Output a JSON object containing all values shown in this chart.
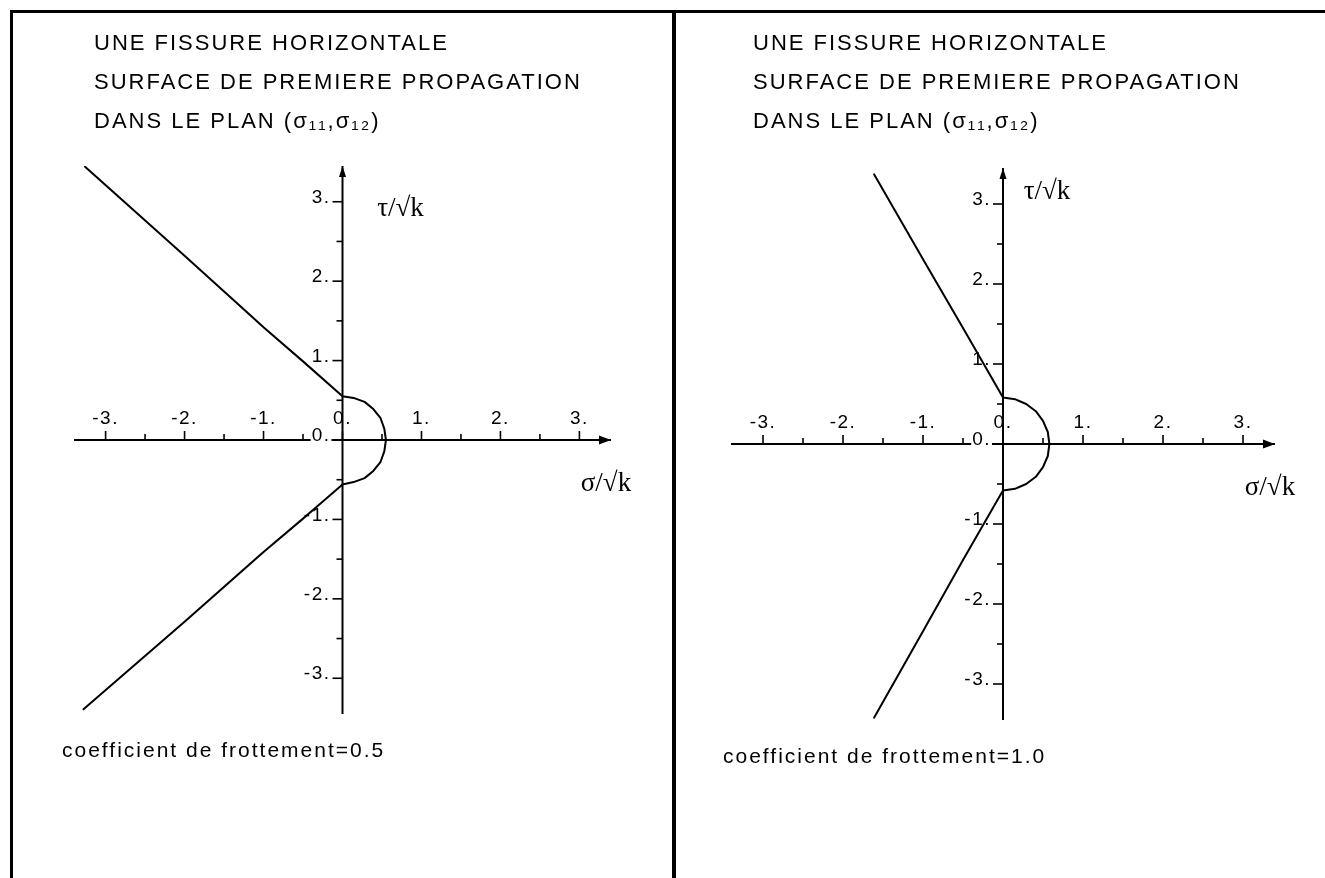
{
  "chart_data": [
    {
      "type": "line",
      "title": "UNE FISSURE HORIZONTALE\nSURFACE DE PREMIERE PROPAGATION\nDANS LE PLAN (σ₁₁,σ₁₂)",
      "xlabel": "σ/√k",
      "ylabel": "τ/√k",
      "annotations": [
        "coefficient de frottement=0.5"
      ],
      "x": [
        -3.26,
        -2,
        -1,
        -0.5,
        0,
        0.14,
        0.28,
        0.39,
        0.48,
        0.53,
        0.55,
        0.53,
        0.48,
        0.39,
        0.28,
        0.14,
        0,
        -0.5,
        -1,
        -2,
        -3.28
      ],
      "series": [
        {
          "color": "#000000",
          "values": [
            3.44,
            2.32,
            1.42,
            0.99,
            0.55,
            0.53,
            0.48,
            0.39,
            0.28,
            0.14,
            0,
            -0.14,
            -0.28,
            -0.39,
            -0.48,
            -0.53,
            -0.56,
            -0.99,
            -1.41,
            -2.29,
            -3.39
          ]
        }
      ],
      "xlim": [
        -3.4,
        3.4
      ],
      "ylim": [
        -3.45,
        3.45
      ],
      "xticks": [
        {
          "value": -3,
          "label": "-3."
        },
        {
          "value": -2.5,
          "label": null
        },
        {
          "value": -2,
          "label": "-2."
        },
        {
          "value": -1.5,
          "label": null
        },
        {
          "value": -1,
          "label": "-1."
        },
        {
          "value": -0.5,
          "label": null
        },
        {
          "value": 0,
          "label": "0."
        },
        {
          "value": 0.5,
          "label": null
        },
        {
          "value": 1,
          "label": "1."
        },
        {
          "value": 1.5,
          "label": null
        },
        {
          "value": 2,
          "label": "2."
        },
        {
          "value": 2.5,
          "label": null
        },
        {
          "value": 3,
          "label": "3."
        }
      ],
      "yticks": [
        {
          "value": -3,
          "label": "-3."
        },
        {
          "value": -2.5,
          "label": null
        },
        {
          "value": -2,
          "label": "-2."
        },
        {
          "value": -1.5,
          "label": null
        },
        {
          "value": -1,
          "label": "-1."
        },
        {
          "value": -0.5,
          "label": null
        },
        {
          "value": 0,
          "label": "0."
        },
        {
          "value": 0.5,
          "label": null
        },
        {
          "value": 1,
          "label": "1."
        },
        {
          "value": 1.5,
          "label": null
        },
        {
          "value": 2,
          "label": "2."
        },
        {
          "value": 2.5,
          "label": null
        },
        {
          "value": 3,
          "label": "3."
        }
      ],
      "marker": "none"
    },
    {
      "type": "line",
      "title": "UNE FISSURE HORIZONTALE\nSURFACE DE PREMIERE PROPAGATION\nDANS LE PLAN (σ₁₁,σ₁₂)",
      "xlabel": "σ/√k",
      "ylabel": "τ/√k",
      "annotations": [
        "coefficient de frottement=1.0"
      ],
      "x": [
        -1.61,
        -1,
        -0.5,
        0,
        0.15,
        0.29,
        0.41,
        0.5,
        0.56,
        0.58,
        0.56,
        0.5,
        0.41,
        0.29,
        0.15,
        0,
        -0.5,
        -1,
        -1.61
      ],
      "series": [
        {
          "color": "#000000",
          "values": [
            3.37,
            2.31,
            1.45,
            0.58,
            0.56,
            0.5,
            0.41,
            0.29,
            0.15,
            0,
            -0.15,
            -0.29,
            -0.41,
            -0.5,
            -0.56,
            -0.58,
            -1.45,
            -2.34,
            -3.42
          ]
        }
      ],
      "xlim": [
        -3.4,
        3.4
      ],
      "ylim": [
        -3.45,
        3.45
      ],
      "xticks": [
        {
          "value": -3,
          "label": "-3."
        },
        {
          "value": -2.5,
          "label": null
        },
        {
          "value": -2,
          "label": "-2."
        },
        {
          "value": -1.5,
          "label": null
        },
        {
          "value": -1,
          "label": "-1."
        },
        {
          "value": -0.5,
          "label": null
        },
        {
          "value": 0,
          "label": "0."
        },
        {
          "value": 0.5,
          "label": null
        },
        {
          "value": 1,
          "label": "1."
        },
        {
          "value": 1.5,
          "label": null
        },
        {
          "value": 2,
          "label": "2."
        },
        {
          "value": 2.5,
          "label": null
        },
        {
          "value": 3,
          "label": "3."
        }
      ],
      "yticks": [
        {
          "value": -3,
          "label": "-3."
        },
        {
          "value": -2.5,
          "label": null
        },
        {
          "value": -2,
          "label": "-2."
        },
        {
          "value": -1.5,
          "label": null
        },
        {
          "value": -1,
          "label": "-1."
        },
        {
          "value": -0.5,
          "label": null
        },
        {
          "value": 0,
          "label": "0."
        },
        {
          "value": 0.5,
          "label": null
        },
        {
          "value": 1,
          "label": "1."
        },
        {
          "value": 1.5,
          "label": null
        },
        {
          "value": 2,
          "label": "2."
        },
        {
          "value": 2.5,
          "label": null
        },
        {
          "value": 3,
          "label": "3."
        }
      ],
      "marker": "none"
    }
  ]
}
